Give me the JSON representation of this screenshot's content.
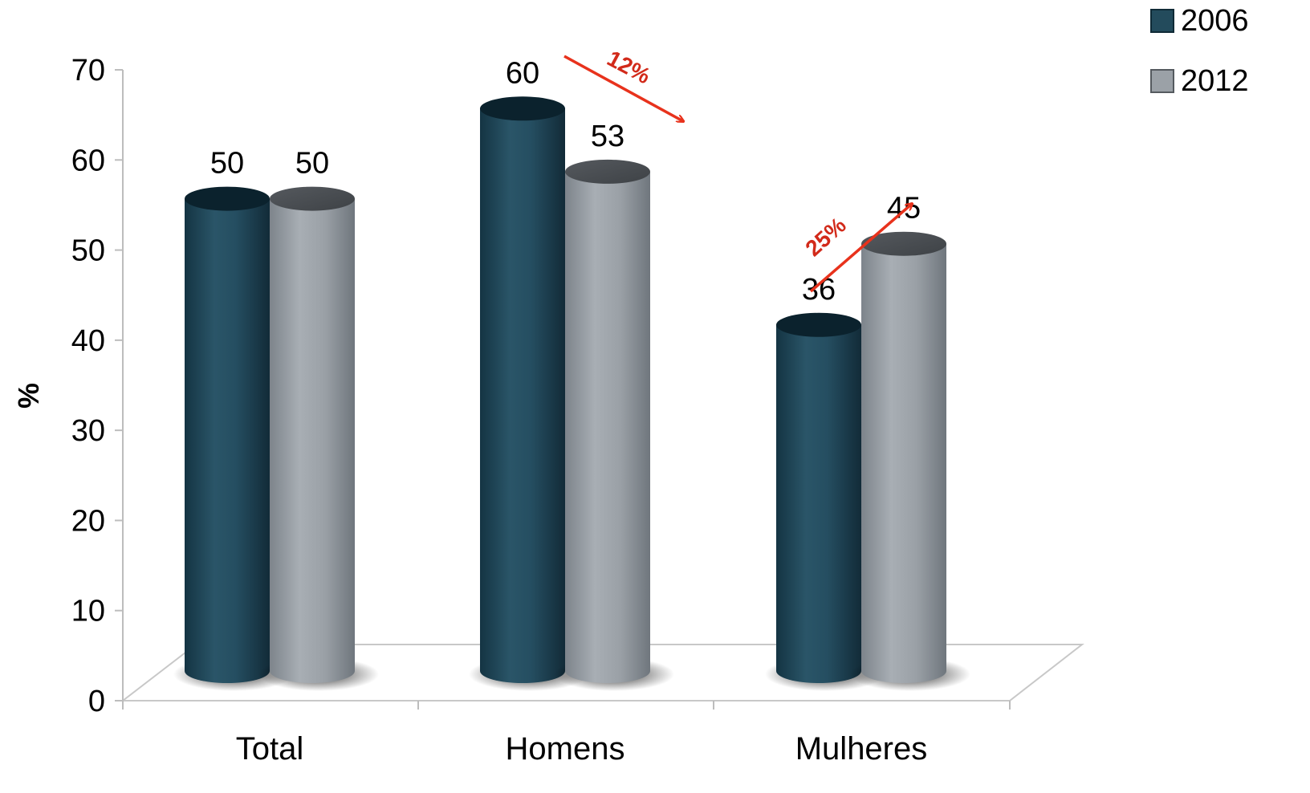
{
  "chart_data": {
    "type": "bar",
    "title": "",
    "xlabel": "",
    "ylabel": "%",
    "ylim": [
      0,
      70
    ],
    "yticks": [
      "0",
      "10",
      "20",
      "30",
      "40",
      "50",
      "60",
      "70"
    ],
    "categories": [
      "Total",
      "Homens",
      "Mulheres"
    ],
    "series": [
      {
        "name": "2006",
        "values": [
          50,
          60,
          36
        ],
        "labels": [
          "50",
          "60",
          "36"
        ],
        "color": "#234b5c"
      },
      {
        "name": "2012",
        "values": [
          50,
          53,
          45
        ],
        "labels": [
          "50",
          "53",
          "45"
        ],
        "color": "#9ba1a7"
      }
    ],
    "legend_position": "top-right",
    "grid": false,
    "annotations": [
      {
        "text": "12%",
        "category": "Homens",
        "direction": "down",
        "color": "#e8321c"
      },
      {
        "text": "25%",
        "category": "Mulheres",
        "direction": "up",
        "color": "#e8321c"
      }
    ]
  }
}
